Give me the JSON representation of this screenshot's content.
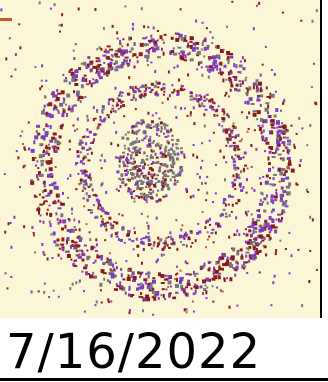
{
  "stamp": {
    "date": "7/16/2022"
  },
  "colors": {
    "panel_background": "#fbf6d6",
    "ink_dark": "#8b1a1a",
    "ink_purple": "#7b3fbf",
    "ink_gray": "#777777",
    "ink_orange": "#c85a2a",
    "rule": "#000000"
  },
  "icons": {
    "seal": "seal-icon"
  }
}
